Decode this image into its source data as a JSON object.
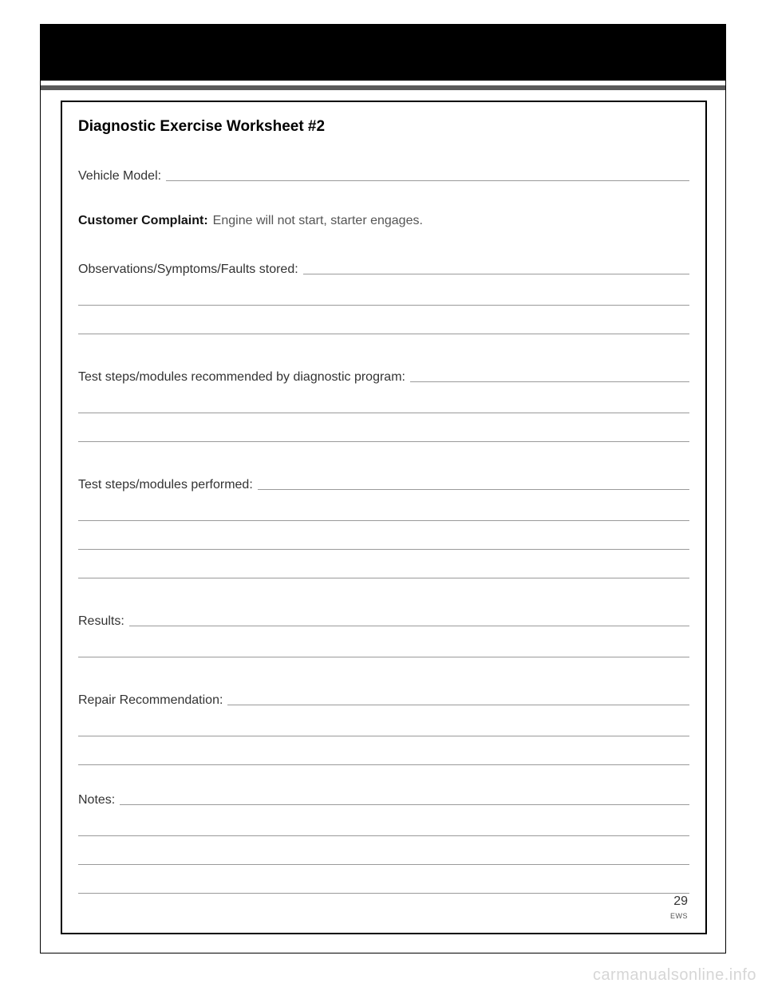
{
  "worksheet": {
    "title": "Diagnostic Exercise Worksheet  #2",
    "fields": {
      "vehicle_model_label": "Vehicle Model:",
      "customer_complaint_label": "Customer Complaint:",
      "customer_complaint_value": "Engine will not start, starter engages.",
      "observations_label": "Observations/Symptoms/Faults stored:",
      "test_recommended_label": "Test steps/modules recommended by diagnostic program:",
      "test_performed_label": "Test steps/modules performed:",
      "results_label": "Results:",
      "repair_label": "Repair Recommendation:",
      "notes_label": "Notes:"
    }
  },
  "footer": {
    "page_number": "29",
    "code": "EWS"
  },
  "watermark": "carmanualsonline.info",
  "style": {
    "line_color": "#9a9a9a",
    "title_fontsize": 19,
    "label_fontsize": 16,
    "value_color": "#555555"
  }
}
